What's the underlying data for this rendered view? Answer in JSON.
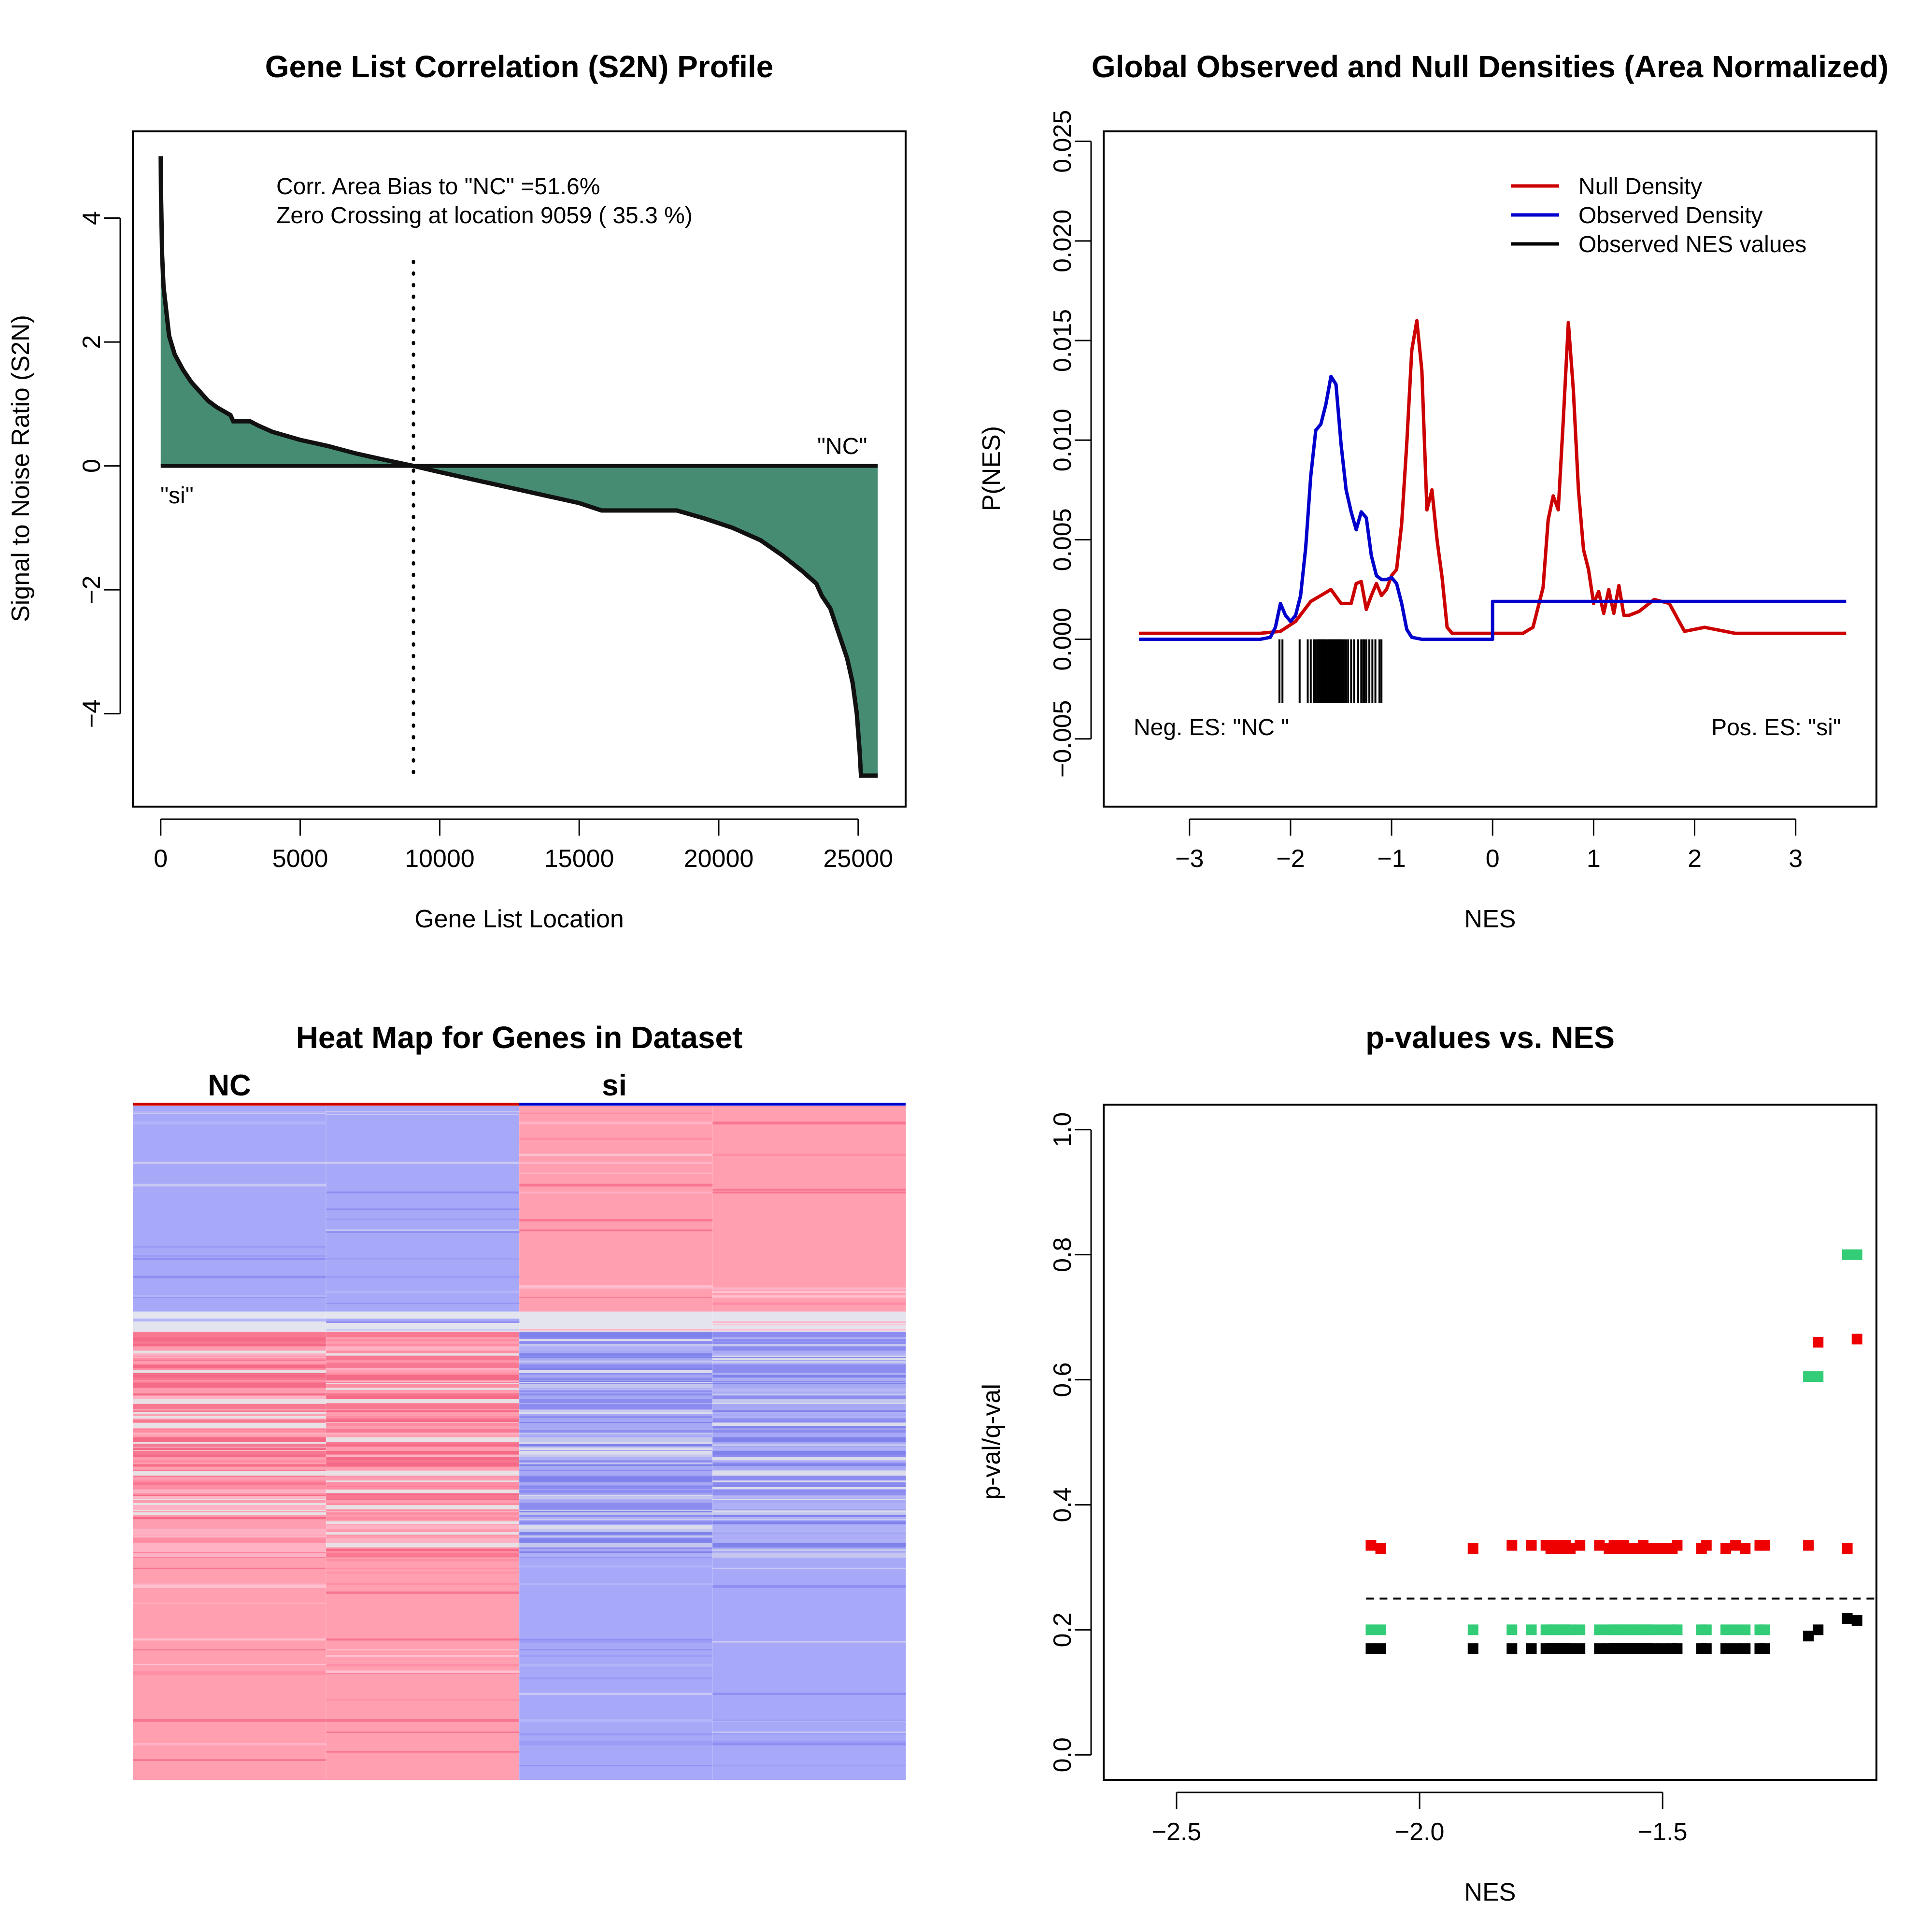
{
  "figure": {
    "background": "#ffffff"
  },
  "chart_data": [
    {
      "type": "area",
      "title": "Gene List Correlation (S2N) Profile",
      "xlabel": "Gene List Location",
      "ylabel": "Signal to Noise Ratio (S2N)",
      "xlim": [
        -1000,
        26700
      ],
      "ylim": [
        -5.5,
        5.4
      ],
      "xticks": [
        0,
        5000,
        10000,
        15000,
        20000,
        25000
      ],
      "yticks": [
        -4,
        -2,
        0,
        2,
        4
      ],
      "x": [
        0,
        10,
        50,
        100,
        200,
        300,
        500,
        800,
        1100,
        1400,
        1700,
        2000,
        2500,
        2600,
        3200,
        3500,
        4000,
        5000,
        6000,
        7000,
        8000,
        9059,
        10000,
        11000,
        12000,
        13000,
        14000,
        15000,
        15800,
        18500,
        19500,
        20500,
        21500,
        22300,
        23000,
        23500,
        23700,
        24000,
        24300,
        24600,
        24800,
        24950,
        25050,
        25100,
        25700
      ],
      "y": [
        5.0,
        4.4,
        3.4,
        2.9,
        2.5,
        2.1,
        1.8,
        1.55,
        1.35,
        1.2,
        1.05,
        0.95,
        0.82,
        0.72,
        0.72,
        0.65,
        0.55,
        0.42,
        0.32,
        0.2,
        0.1,
        0.0,
        -0.1,
        -0.2,
        -0.3,
        -0.4,
        -0.5,
        -0.6,
        -0.72,
        -0.72,
        -0.85,
        -1.0,
        -1.2,
        -1.45,
        -1.7,
        -1.9,
        -2.1,
        -2.3,
        -2.7,
        -3.1,
        -3.5,
        -4.0,
        -4.6,
        -5.0,
        -5.0
      ],
      "fill_color": "#468c72",
      "line_color": "#111111",
      "zero_crossing": 9059,
      "annotations": {
        "bias": "Corr. Area Bias to \"NC\" =51.6%",
        "zero": "Zero Crossing at location  9059  ( 35.3  %)",
        "left_label": "\"si\"",
        "right_label": "\"NC\""
      }
    },
    {
      "type": "line",
      "title": "Global Observed and Null Densities (Area Normalized)",
      "xlabel": "NES",
      "ylabel": "P(NES)",
      "xlim": [
        -3.85,
        3.8
      ],
      "ylim": [
        -0.0084,
        0.0255
      ],
      "xticks": [
        -3,
        -2,
        -1,
        0,
        1,
        2,
        3
      ],
      "yticks": [
        -0.005,
        0.0,
        0.005,
        0.01,
        0.015,
        0.02,
        0.025
      ],
      "ytick_labels": [
        "−0.005",
        "0.000",
        "0.005",
        "0.010",
        "0.015",
        "0.020",
        "0.025"
      ],
      "series": [
        {
          "name": "Null Density",
          "color": "#cc0000",
          "x": [
            -3.5,
            -2.3,
            -2.1,
            -1.95,
            -1.8,
            -1.7,
            -1.6,
            -1.5,
            -1.4,
            -1.35,
            -1.3,
            -1.25,
            -1.2,
            -1.15,
            -1.1,
            -1.05,
            -1.0,
            -0.95,
            -0.9,
            -0.85,
            -0.8,
            -0.75,
            -0.7,
            -0.65,
            -0.6,
            -0.55,
            -0.5,
            -0.45,
            -0.4,
            -0.35,
            -0.3,
            0.3,
            0.4,
            0.5,
            0.55,
            0.6,
            0.65,
            0.7,
            0.75,
            0.8,
            0.85,
            0.9,
            0.95,
            1.0,
            1.05,
            1.1,
            1.15,
            1.2,
            1.25,
            1.3,
            1.35,
            1.45,
            1.6,
            1.75,
            1.9,
            2.1,
            2.2,
            2.4,
            3.5
          ],
          "y": [
            0.0003,
            0.0003,
            0.0004,
            0.0009,
            0.0019,
            0.0022,
            0.0025,
            0.0018,
            0.0018,
            0.0028,
            0.0029,
            0.0015,
            0.0022,
            0.0028,
            0.0022,
            0.0025,
            0.0032,
            0.0035,
            0.0058,
            0.0098,
            0.0145,
            0.016,
            0.0135,
            0.0065,
            0.0075,
            0.005,
            0.0031,
            0.0006,
            0.0003,
            0.0003,
            0.0003,
            0.0003,
            0.0006,
            0.0026,
            0.006,
            0.0072,
            0.0065,
            0.011,
            0.0159,
            0.0125,
            0.0075,
            0.0045,
            0.0035,
            0.0018,
            0.0024,
            0.0013,
            0.0025,
            0.0013,
            0.0027,
            0.0012,
            0.0012,
            0.0014,
            0.002,
            0.0018,
            0.0004,
            0.0006,
            0.0005,
            0.0003,
            0.0003
          ]
        },
        {
          "name": "Observed Density",
          "color": "#0000cc",
          "x": [
            -3.5,
            -2.3,
            -2.2,
            -2.15,
            -2.1,
            -2.05,
            -2.0,
            -1.95,
            -1.9,
            -1.85,
            -1.8,
            -1.75,
            -1.7,
            -1.65,
            -1.6,
            -1.55,
            -1.5,
            -1.45,
            -1.4,
            -1.35,
            -1.3,
            -1.25,
            -1.2,
            -1.15,
            -1.1,
            -1.05,
            -1.0,
            -0.95,
            -0.9,
            -0.85,
            -0.8,
            -0.7,
            -0.5,
            0.0,
            0.0,
            3.5
          ],
          "y": [
            0.0,
            0.0,
            0.0001,
            0.0006,
            0.0018,
            0.0012,
            0.0009,
            0.0012,
            0.0022,
            0.0046,
            0.0082,
            0.0105,
            0.0108,
            0.0118,
            0.0132,
            0.0128,
            0.0098,
            0.0075,
            0.0064,
            0.0055,
            0.0064,
            0.0061,
            0.0042,
            0.0032,
            0.003,
            0.003,
            0.0031,
            0.0028,
            0.0018,
            0.0005,
            0.0001,
            0.0,
            0.0,
            0.0,
            0.0019,
            0.0019
          ]
        },
        {
          "name": "Observed NES values",
          "color": "#000000",
          "values": [
            -2.11,
            -2.08,
            -1.91,
            -1.83,
            -1.8,
            -1.77,
            -1.75,
            -1.73,
            -1.72,
            -1.71,
            -1.7,
            -1.69,
            -1.68,
            -1.67,
            -1.66,
            -1.65,
            -1.63,
            -1.62,
            -1.61,
            -1.6,
            -1.59,
            -1.58,
            -1.57,
            -1.56,
            -1.55,
            -1.54,
            -1.53,
            -1.52,
            -1.51,
            -1.5,
            -1.49,
            -1.47,
            -1.45,
            -1.43,
            -1.4,
            -1.37,
            -1.33,
            -1.3,
            -1.28,
            -1.27,
            -1.25,
            -1.22,
            -1.19,
            -1.16,
            -1.12,
            -1.1
          ],
          "y_range": [
            -0.0032,
            0.0
          ]
        }
      ],
      "legend_position": "top-right",
      "annotations": {
        "neg": "Neg. ES: \"NC \"",
        "pos": "Pos. ES: \"si\""
      }
    },
    {
      "type": "heatmap",
      "title": "Heat Map for Genes in Dataset",
      "groups": [
        {
          "label": "NC",
          "color": "#cc0000"
        },
        {
          "label": "si",
          "color": "#0000cc"
        }
      ],
      "columns": 4,
      "colors": {
        "low": "#a8a8f8",
        "high": "#ff9fb0"
      },
      "bands": [
        {
          "from": 0.0,
          "to": 0.305,
          "cols": [
            "low",
            "low",
            "high",
            "high"
          ],
          "mixed": false
        },
        {
          "from": 0.305,
          "to": 0.335,
          "cols": [
            "low",
            "low",
            "high",
            "high"
          ],
          "mixed": false
        },
        {
          "from": 0.335,
          "to": 0.67,
          "cols": [
            "high",
            "high",
            "low",
            "low"
          ],
          "mixed": true
        },
        {
          "from": 0.67,
          "to": 1.0,
          "cols": [
            "high",
            "high",
            "low",
            "low"
          ],
          "mixed": false
        }
      ]
    },
    {
      "type": "scatter",
      "title": "p-values vs. NES",
      "xlabel": "NES",
      "ylabel": "p-val/q-val",
      "xlim": [
        -2.65,
        -1.06
      ],
      "ylim": [
        -0.04,
        1.04
      ],
      "xticks": [
        -2.5,
        -2.0,
        -1.5
      ],
      "xtick_labels": [
        "−2.5",
        "−2.0",
        "−1.5"
      ],
      "yticks": [
        0.0,
        0.2,
        0.4,
        0.6,
        0.8,
        1.0
      ],
      "ytick_labels": [
        "0.0",
        "0.2",
        "0.4",
        "0.6",
        "0.8",
        "1.0"
      ],
      "threshold": 0.25,
      "nes": [
        -2.1,
        -2.08,
        -1.89,
        -1.81,
        -1.77,
        -1.74,
        -1.73,
        -1.72,
        -1.71,
        -1.7,
        -1.69,
        -1.67,
        -1.63,
        -1.61,
        -1.6,
        -1.59,
        -1.58,
        -1.57,
        -1.56,
        -1.55,
        -1.54,
        -1.53,
        -1.52,
        -1.5,
        -1.48,
        -1.47,
        -1.42,
        -1.41,
        -1.37,
        -1.35,
        -1.33,
        -1.3,
        -1.29,
        -1.2,
        -1.18,
        -1.12,
        -1.1
      ],
      "series": [
        {
          "color": "#ee0000",
          "values": [
            0.335,
            0.33,
            0.33,
            0.335,
            0.335,
            0.335,
            0.33,
            0.335,
            0.33,
            0.335,
            0.33,
            0.335,
            0.335,
            0.33,
            0.335,
            0.33,
            0.335,
            0.33,
            0.33,
            0.33,
            0.335,
            0.33,
            0.33,
            0.33,
            0.33,
            0.335,
            0.33,
            0.335,
            0.33,
            0.335,
            0.33,
            0.335,
            0.335,
            0.335,
            0.66,
            0.33,
            0.665
          ]
        },
        {
          "color": "#33cc77",
          "values": [
            0.2,
            0.2,
            0.2,
            0.2,
            0.2,
            0.2,
            0.2,
            0.2,
            0.2,
            0.2,
            0.2,
            0.2,
            0.2,
            0.2,
            0.2,
            0.2,
            0.2,
            0.2,
            0.2,
            0.2,
            0.2,
            0.2,
            0.2,
            0.2,
            0.2,
            0.2,
            0.2,
            0.2,
            0.2,
            0.2,
            0.2,
            0.2,
            0.2,
            0.605,
            0.605,
            0.8,
            0.8
          ]
        },
        {
          "color": "#000000",
          "values": [
            0.17,
            0.17,
            0.17,
            0.17,
            0.17,
            0.17,
            0.17,
            0.17,
            0.17,
            0.17,
            0.17,
            0.17,
            0.17,
            0.17,
            0.17,
            0.17,
            0.17,
            0.17,
            0.17,
            0.17,
            0.17,
            0.17,
            0.17,
            0.17,
            0.17,
            0.17,
            0.17,
            0.17,
            0.17,
            0.17,
            0.17,
            0.17,
            0.17,
            0.19,
            0.2,
            0.218,
            0.215
          ]
        }
      ]
    }
  ]
}
